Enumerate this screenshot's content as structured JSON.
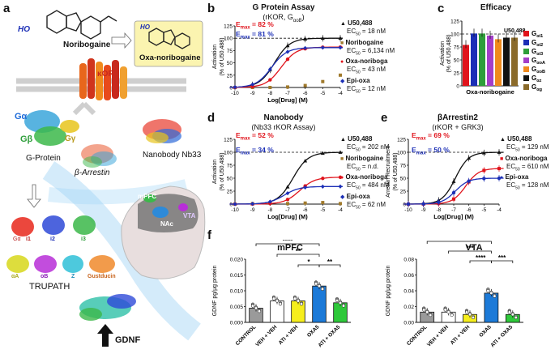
{
  "panels": {
    "a": "a",
    "b": "b",
    "c": "c",
    "d": "d",
    "e": "e",
    "f": "f"
  },
  "a": {
    "noribogaine": "Noribogaine",
    "oxa": "Oxa-noribogaine",
    "kor": "κOR",
    "galpha": "Gα",
    "gbeta": "Gβ",
    "ggamma": "Gγ",
    "gprotein": "G-Protein",
    "arrestin": "β-Arrestin",
    "nanobody": "Nanobody Nb33",
    "trupath": "TRUPATH",
    "gdnf": "GDNF",
    "mpfc": "mPFC",
    "nac": "NAc",
    "vta": "VTA",
    "ho1": "HO",
    "ho2": "HO",
    "subunits": [
      "Gα",
      "i1",
      "i2",
      "i3",
      "αA",
      "oB",
      "Z",
      "Gustducin"
    ]
  },
  "b": {
    "title": "G Protein Assay",
    "subtitle": "(rKOR, G",
    "subtitle_sub": "αoB",
    "subtitle_end": ")",
    "emax_red": "82 %",
    "emax_blue": "81 %",
    "legend": [
      {
        "name": "U50,488",
        "ec": "18 nM"
      },
      {
        "name": "Noribogaine",
        "ec": "6,134 nM"
      },
      {
        "name": "Oxa-noriboga",
        "ec": "43 nM"
      },
      {
        "name": "Epi-oxa",
        "ec": "12 nM"
      }
    ]
  },
  "c": {
    "title": "Efficacy",
    "xlabel": "Oxa-noribogaine",
    "ref": "U50,488",
    "ylabel": "Activation",
    "ylabel2": "(% of U50,488)",
    "legend": [
      {
        "sub": "αi1",
        "color": "#e0141c"
      },
      {
        "sub": "αi2",
        "color": "#1c2fb6"
      },
      {
        "sub": "αi3",
        "color": "#2e9e3a"
      },
      {
        "sub": "αoA",
        "color": "#a43ec8"
      },
      {
        "sub": "αoB",
        "color": "#f08a1c"
      },
      {
        "sub": "αz",
        "color": "#111111"
      },
      {
        "sub": "αg",
        "color": "#8a6a2a"
      }
    ]
  },
  "d": {
    "title": "Nanobody",
    "subtitle": "(Nb33 rKOR Assay)",
    "emax_red": "52 %",
    "emax_blue": "34 %",
    "legend": [
      {
        "name": "U50,488",
        "ec": "202 nM"
      },
      {
        "name": "Noribogaine",
        "ec": "n.d."
      },
      {
        "name": "Oxa-noriboga",
        "ec": "484 nM"
      },
      {
        "name": "Epi-oxa",
        "ec": "62 nM"
      }
    ]
  },
  "e": {
    "title": "βArrestin2",
    "subtitle": "(rKOR + GRK3)",
    "emax_red": "69 %",
    "emax_blue": "50 %",
    "legend": [
      {
        "name": "U50,488",
        "ec": "129 nM"
      },
      {
        "name": "Oxa-noriboga",
        "ec": "610 nM"
      },
      {
        "name": "Epi-oxa",
        "ec": "128 nM"
      }
    ]
  },
  "common": {
    "emax": "E",
    "emax_sub": "max",
    "eq": " = ",
    "ec_label": "EC",
    "ec_sub": "50",
    "ec_eq": " = ",
    "xlabel": "Log[Drug] (M)",
    "ylabel_act": "Activation",
    "ylabel_pct": "(% of U50,488)",
    "ylabel_arr": "Arrestin Recruitment",
    "xticks": [
      "-10",
      "-9",
      "-8",
      "-7",
      "-6",
      "-5",
      "-4"
    ],
    "yticks": [
      "0",
      "25",
      "50",
      "75",
      "100",
      "125"
    ]
  },
  "f": {
    "mpfc_title": "mPFC",
    "vta_title": "VTA",
    "ylabel": "GDNF pg/μg protein",
    "mpfc_yticks": [
      "0.000",
      "0.005",
      "0.010",
      "0.015",
      "0.020"
    ],
    "vta_yticks": [
      "0.00",
      "0.02",
      "0.04",
      "0.06",
      "0.08"
    ],
    "groups": [
      "CONTROL",
      "VEH + VEH",
      "ATI + VEH",
      "OXA5",
      "ATI + OXA5"
    ],
    "mpfc_values": [
      0.0045,
      0.0068,
      0.0068,
      0.0115,
      0.0062
    ],
    "vta_values": [
      0.013,
      0.013,
      0.01,
      0.037,
      0.01
    ],
    "mpfc_sig": [
      "****",
      "**",
      "*",
      "**"
    ],
    "vta_sig": [
      "***",
      "***",
      "****",
      "***"
    ]
  },
  "chart_data": [
    {
      "type": "line",
      "title": "G Protein Assay",
      "xlabel": "Log[Drug] (M)",
      "ylabel": "Activation (% of U50,488)",
      "series": [
        {
          "name": "U50,488",
          "ec50_nM": 18,
          "emax": 100
        },
        {
          "name": "Noribogaine",
          "ec50_nM": 6134,
          "emax": 30
        },
        {
          "name": "Oxa-noriboga",
          "ec50_nM": 43,
          "emax": 82
        },
        {
          "name": "Epi-oxa",
          "ec50_nM": 12,
          "emax": 81
        }
      ]
    },
    {
      "type": "bar",
      "title": "Efficacy",
      "categories": [
        "Gαi1",
        "Gαi2",
        "Gαi3",
        "GαoA",
        "GαoB",
        "Gαz",
        "Gαg"
      ],
      "values": [
        79,
        101,
        101,
        97,
        90,
        93,
        93
      ]
    },
    {
      "type": "line",
      "title": "Nanobody",
      "series": [
        {
          "name": "U50,488",
          "ec50_nM": 202,
          "emax": 100
        },
        {
          "name": "Noribogaine",
          "ec50": "n.d."
        },
        {
          "name": "Oxa-noriboga",
          "ec50_nM": 484,
          "emax": 52
        },
        {
          "name": "Epi-oxa",
          "ec50_nM": 62,
          "emax": 34
        }
      ]
    },
    {
      "type": "line",
      "title": "βArrestin2",
      "series": [
        {
          "name": "U50,488",
          "ec50_nM": 129,
          "emax": 100
        },
        {
          "name": "Oxa-noriboga",
          "ec50_nM": 610,
          "emax": 69
        },
        {
          "name": "Epi-oxa",
          "ec50_nM": 128,
          "emax": 50
        }
      ]
    },
    {
      "type": "bar",
      "title": "mPFC",
      "categories": [
        "CONTROL",
        "VEH + VEH",
        "ATI + VEH",
        "OXA5",
        "ATI + OXA5"
      ],
      "values": [
        0.0045,
        0.0068,
        0.0068,
        0.0115,
        0.0062
      ],
      "ylim": [
        0,
        0.02
      ]
    },
    {
      "type": "bar",
      "title": "VTA",
      "categories": [
        "CONTROL",
        "VEH + VEH",
        "ATI + VEH",
        "OXA5",
        "ATI + OXA5"
      ],
      "values": [
        0.013,
        0.013,
        0.01,
        0.037,
        0.01
      ],
      "ylim": [
        0,
        0.08
      ]
    }
  ]
}
